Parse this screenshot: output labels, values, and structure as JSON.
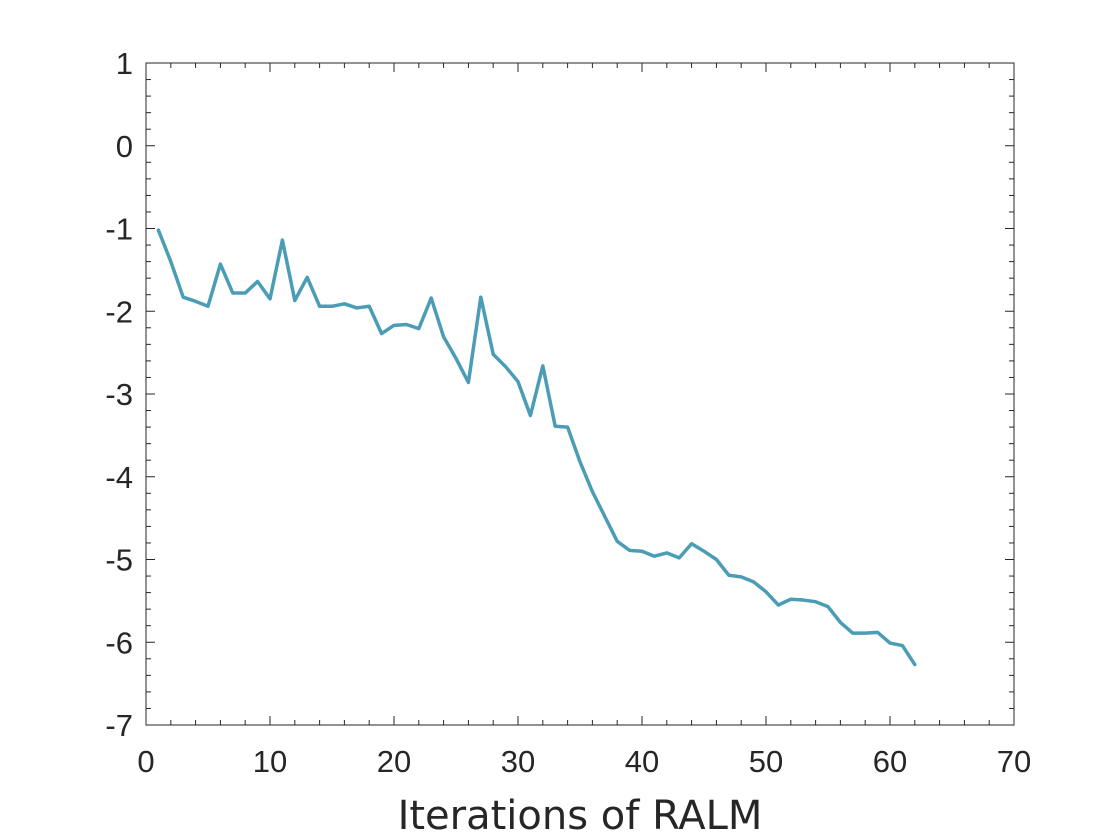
{
  "chart_data": {
    "type": "line",
    "title": "",
    "xlabel": "Iterations of RALM",
    "ylabel": "",
    "xlim": [
      0,
      70
    ],
    "ylim": [
      -7,
      1
    ],
    "xticks": [
      0,
      10,
      20,
      30,
      40,
      50,
      60,
      70
    ],
    "yticks": [
      1,
      0,
      -1,
      -2,
      -3,
      -4,
      -5,
      -6,
      -7
    ],
    "xtick_labels": [
      "0",
      "10",
      "20",
      "30",
      "40",
      "50",
      "60",
      "70"
    ],
    "ytick_labels": [
      "1",
      "0",
      "-1",
      "-2",
      "-3",
      "-4",
      "-5",
      "-6",
      "-7"
    ],
    "grid": false,
    "box": true,
    "series": [
      {
        "color": "#4a9db5",
        "x": [
          1,
          2,
          3,
          4,
          5,
          6,
          7,
          8,
          9,
          10,
          11,
          12,
          13,
          14,
          15,
          16,
          17,
          18,
          19,
          20,
          21,
          22,
          23,
          24,
          25,
          26,
          27,
          28,
          29,
          30,
          31,
          32,
          33,
          34,
          35,
          36,
          37,
          38,
          39,
          40,
          41,
          42,
          43,
          44,
          45,
          46,
          47,
          48,
          49,
          50,
          51,
          52,
          53,
          54,
          55,
          56,
          57,
          58,
          59,
          60,
          61,
          62
        ],
        "y": [
          -1.02,
          -1.4,
          -1.83,
          -1.88,
          -1.94,
          -1.43,
          -1.78,
          -1.78,
          -1.64,
          -1.85,
          -1.14,
          -1.87,
          -1.59,
          -1.94,
          -1.94,
          -1.91,
          -1.96,
          -1.94,
          -2.27,
          -2.17,
          -2.16,
          -2.21,
          -1.84,
          -2.31,
          -2.57,
          -2.86,
          -1.83,
          -2.52,
          -2.67,
          -2.85,
          -3.26,
          -2.66,
          -3.39,
          -3.4,
          -3.82,
          -4.18,
          -4.48,
          -4.78,
          -4.89,
          -4.9,
          -4.96,
          -4.92,
          -4.98,
          -4.81,
          -4.9,
          -5.0,
          -5.19,
          -5.21,
          -5.27,
          -5.39,
          -5.55,
          -5.48,
          -5.49,
          -5.51,
          -5.57,
          -5.76,
          -5.89,
          -5.89,
          -5.88,
          -6.01,
          -6.04,
          -6.27
        ]
      }
    ]
  }
}
